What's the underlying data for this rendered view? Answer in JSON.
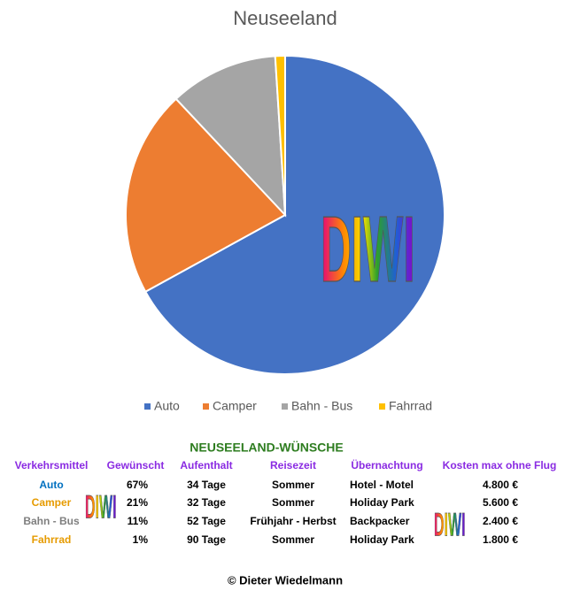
{
  "chart_data": {
    "type": "pie",
    "title": "Neuseeland",
    "categories": [
      "Auto",
      "Camper",
      "Bahn - Bus",
      "Fahrrad"
    ],
    "values": [
      67,
      21,
      11,
      1
    ],
    "colors": [
      "#4472c4",
      "#ed7d31",
      "#a5a5a5",
      "#ffc000"
    ]
  },
  "logo": "DIWI",
  "table": {
    "title": "NEUSEELAND-WÜNSCHE",
    "header": [
      "Verkehrsmittel",
      "Gewünscht",
      "Aufenthalt",
      "Reisezeit",
      "Übernachtung",
      "Kosten max ohne Flug"
    ],
    "rows": [
      [
        "Auto",
        "67%",
        "34 Tage",
        "Sommer",
        "Hotel - Motel",
        "4.800 €"
      ],
      [
        "Camper",
        "21%",
        "32 Tage",
        "Sommer",
        "Holiday Park",
        "5.600 €"
      ],
      [
        "Bahn - Bus",
        "11%",
        "52 Tage",
        "Frühjahr - Herbst",
        "Backpacker",
        "2.400 €"
      ],
      [
        "Fahrrad",
        "1%",
        "90 Tage",
        "Sommer",
        "Holiday Park",
        "1.800 €"
      ]
    ]
  },
  "footer": "© Dieter Wiedelmann"
}
